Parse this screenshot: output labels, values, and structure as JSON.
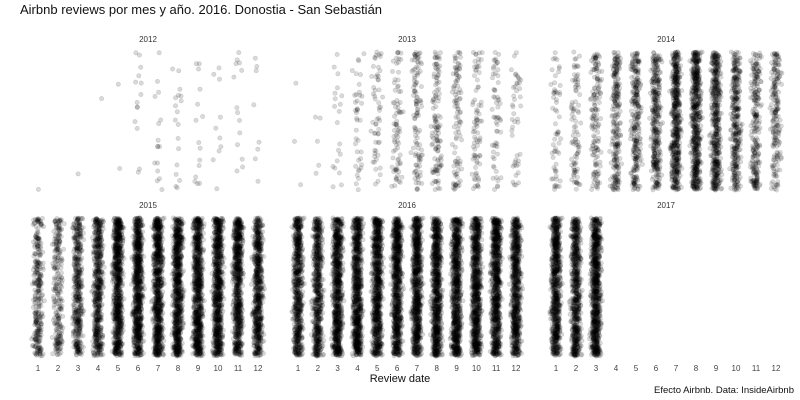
{
  "title": "Airbnb reviews por mes y año. 2016. Donostia - San Sebastián",
  "caption": "Efecto Airbnb. Data: InsideAirbnb",
  "chart_data": {
    "type": "scatter",
    "description_of_encoding": "faceted jitter plot: x = month of review (1-12), y = random jitter, one point per review",
    "xlabel": "Review date",
    "ylabel": "",
    "x_ticks": [
      1,
      2,
      3,
      4,
      5,
      6,
      7,
      8,
      9,
      10,
      11,
      12
    ],
    "xlim": [
      1,
      12
    ],
    "grid": false,
    "legend": "none",
    "point_color": "#000000",
    "point_alpha": 0.15,
    "panels": [
      {
        "year": "2012",
        "reviews_by_month": [
          1,
          0,
          1,
          1,
          2,
          14,
          16,
          18,
          15,
          10,
          14,
          8
        ]
      },
      {
        "year": "2013",
        "reviews_by_month": [
          3,
          5,
          20,
          40,
          55,
          80,
          110,
          120,
          100,
          80,
          60,
          45
        ]
      },
      {
        "year": "2014",
        "reviews_by_month": [
          60,
          90,
          150,
          250,
          280,
          350,
          550,
          600,
          500,
          350,
          250,
          200
        ]
      },
      {
        "year": "2015",
        "reviews_by_month": [
          300,
          250,
          450,
          600,
          900,
          1100,
          1400,
          1600,
          1400,
          1000,
          800,
          700
        ]
      },
      {
        "year": "2016",
        "reviews_by_month": [
          700,
          650,
          900,
          1100,
          1400,
          1700,
          2300,
          2600,
          2000,
          1300,
          900,
          800
        ]
      },
      {
        "year": "2017",
        "reviews_by_month": [
          800,
          700,
          900,
          0,
          0,
          0,
          0,
          0,
          0,
          0,
          0,
          0
        ]
      }
    ]
  }
}
